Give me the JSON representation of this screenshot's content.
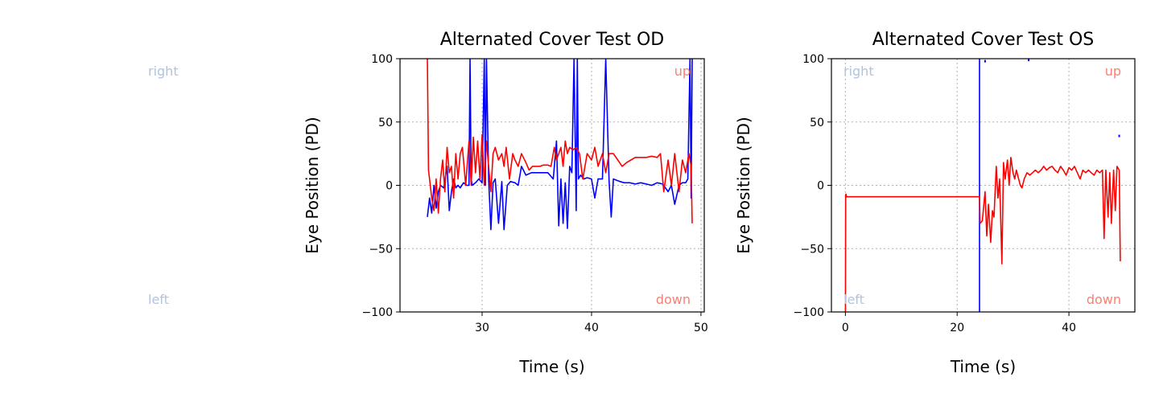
{
  "colors": {
    "right_eye_trace": "#0000ff",
    "left_eye_trace": "#ff0000",
    "right_left_label": "#b0c4de",
    "up_down_label": "#fa8072",
    "grid": "#b0b0b0"
  },
  "floating_labels": {
    "right": "right",
    "left": "left"
  },
  "chart_data": [
    {
      "type": "line",
      "title": "Alternated Cover Test OD",
      "xlabel": "Time (s)",
      "ylabel": "Eye Position (PD)",
      "xlim": [
        22.5,
        50.3
      ],
      "ylim": [
        -100,
        100
      ],
      "xticks": [
        30,
        40,
        50
      ],
      "yticks": [
        -100,
        -50,
        0,
        50,
        100
      ],
      "xtick_labels": [
        "30",
        "40",
        "50"
      ],
      "ytick_labels": [
        "−100",
        "−50",
        "0",
        "50",
        "100"
      ],
      "grid": true,
      "corner_labels": {
        "top_right": "up",
        "bottom_right": "down"
      },
      "series": [
        {
          "color": "#0000ff",
          "x": [
            25.0,
            25.2,
            25.4,
            25.6,
            25.8,
            26.0,
            26.2,
            26.5,
            26.8,
            27.0,
            27.2,
            27.4,
            27.6,
            27.8,
            28.0,
            28.3,
            28.6,
            28.8,
            28.9,
            29.0,
            29.1,
            29.4,
            29.7,
            30.0,
            30.2,
            30.3,
            30.4,
            30.6,
            30.8,
            31.0,
            31.2,
            31.5,
            31.8,
            32.0,
            32.3,
            32.6,
            33.0,
            33.3,
            33.6,
            34.0,
            34.5,
            35.0,
            35.5,
            36.0,
            36.5,
            36.8,
            37.0,
            37.2,
            37.4,
            37.6,
            37.8,
            38.0,
            38.2,
            38.4,
            38.6,
            38.7,
            38.8,
            39.0,
            39.3,
            39.6,
            40.0,
            40.3,
            40.6,
            41.0,
            41.3,
            41.6,
            41.8,
            42.0,
            42.3,
            42.6,
            43.0,
            43.5,
            44.0,
            44.5,
            45.0,
            45.5,
            46.0,
            46.5,
            47.0,
            47.3,
            47.6,
            48.0,
            48.3,
            48.6,
            48.8,
            49.0,
            49.1,
            49.2
          ],
          "y": [
            -25,
            -10,
            -22,
            0,
            -18,
            -5,
            0,
            -2,
            15,
            -20,
            -5,
            5,
            -2,
            0,
            -2,
            2,
            0,
            0,
            100,
            5,
            0,
            2,
            5,
            2,
            100,
            0,
            100,
            5,
            -35,
            2,
            5,
            -30,
            3,
            -35,
            0,
            3,
            2,
            0,
            15,
            8,
            10,
            10,
            10,
            10,
            5,
            35,
            -32,
            5,
            -30,
            2,
            -34,
            15,
            10,
            100,
            -20,
            100,
            5,
            8,
            5,
            6,
            5,
            -10,
            5,
            5,
            100,
            4,
            -25,
            5,
            4,
            3,
            2,
            2,
            1,
            2,
            1,
            0,
            2,
            1,
            -5,
            0,
            -15,
            0,
            2,
            2,
            5,
            100,
            -10,
            100
          ]
        },
        {
          "color": "#ff0000",
          "x": [
            25.0,
            25.1,
            25.2,
            25.4,
            25.6,
            25.8,
            26.0,
            26.2,
            26.4,
            26.6,
            26.8,
            27.0,
            27.2,
            27.4,
            27.6,
            27.8,
            28.0,
            28.2,
            28.5,
            28.8,
            29.0,
            29.2,
            29.4,
            29.6,
            29.8,
            30.0,
            30.2,
            30.4,
            30.6,
            30.8,
            31.0,
            31.2,
            31.5,
            31.8,
            32.0,
            32.2,
            32.5,
            32.8,
            33.0,
            33.3,
            33.6,
            34.0,
            34.3,
            34.6,
            35.0,
            35.3,
            35.6,
            36.0,
            36.3,
            36.6,
            36.8,
            37.0,
            37.2,
            37.4,
            37.6,
            37.8,
            38.0,
            38.3,
            38.6,
            38.9,
            39.2,
            39.6,
            40.0,
            40.3,
            40.6,
            41.0,
            41.3,
            41.6,
            42.0,
            42.4,
            42.8,
            43.2,
            43.6,
            44.0,
            44.5,
            45.0,
            45.5,
            46.0,
            46.3,
            46.6,
            47.0,
            47.3,
            47.6,
            48.0,
            48.3,
            48.6,
            48.9,
            49.1,
            49.2
          ],
          "y": [
            100,
            12,
            5,
            -10,
            -20,
            5,
            -22,
            5,
            20,
            -5,
            30,
            10,
            15,
            -10,
            25,
            5,
            25,
            30,
            0,
            35,
            0,
            38,
            10,
            35,
            5,
            40,
            0,
            35,
            15,
            -5,
            25,
            30,
            20,
            25,
            15,
            30,
            5,
            25,
            20,
            15,
            25,
            18,
            12,
            15,
            15,
            15,
            16,
            16,
            15,
            30,
            20,
            25,
            30,
            15,
            35,
            25,
            30,
            28,
            30,
            25,
            5,
            25,
            20,
            30,
            15,
            25,
            10,
            25,
            25,
            20,
            15,
            18,
            20,
            22,
            22,
            22,
            23,
            22,
            25,
            -5,
            20,
            0,
            25,
            -5,
            20,
            10,
            25,
            15,
            -30
          ]
        }
      ]
    },
    {
      "type": "line",
      "title": "Alternated Cover Test OS",
      "xlabel": "Time (s)",
      "ylabel": "Eye Position (PD)",
      "xlim": [
        -2.5,
        51.8
      ],
      "ylim": [
        -100,
        100
      ],
      "xticks": [
        0,
        20,
        40
      ],
      "yticks": [
        -100,
        -50,
        0,
        50,
        100
      ],
      "xtick_labels": [
        "0",
        "20",
        "40"
      ],
      "ytick_labels": [
        "−100",
        "−50",
        "0",
        "50",
        "100"
      ],
      "grid": true,
      "corner_labels": {
        "top_left": "right",
        "bottom_left": "left",
        "top_right": "up",
        "bottom_right": "down"
      },
      "series": [
        {
          "color": "#0000ff",
          "x": [
            24.0,
            24.0,
            24.01
          ],
          "y": [
            -100,
            100,
            100
          ],
          "dots": [
            [
              25.0,
              98
            ],
            [
              32.8,
              99
            ],
            [
              49.0,
              39
            ]
          ]
        },
        {
          "color": "#ff0000",
          "x": [
            0.0,
            0.05,
            0.1,
            0.2,
            0.3,
            24.0,
            24.1,
            24.5,
            25.0,
            25.3,
            25.6,
            26.0,
            26.3,
            26.6,
            27.0,
            27.3,
            27.6,
            28.0,
            28.3,
            28.6,
            29.0,
            29.3,
            29.6,
            30.0,
            30.3,
            30.6,
            31.0,
            31.3,
            31.6,
            32.0,
            32.5,
            33.0,
            33.5,
            34.0,
            34.5,
            35.0,
            35.5,
            36.0,
            36.5,
            37.0,
            37.5,
            38.0,
            38.5,
            39.0,
            39.5,
            40.0,
            40.5,
            41.0,
            41.5,
            42.0,
            42.5,
            43.0,
            43.5,
            44.0,
            44.5,
            45.0,
            45.5,
            46.0,
            46.3,
            46.6,
            47.0,
            47.3,
            47.6,
            48.0,
            48.3,
            48.6,
            49.0,
            49.2
          ],
          "y": [
            -100,
            -8,
            -7,
            -9,
            -9,
            -9,
            -30,
            -28,
            -5,
            -40,
            -15,
            -45,
            -20,
            -25,
            15,
            -10,
            5,
            -62,
            18,
            5,
            20,
            0,
            22,
            10,
            5,
            12,
            5,
            0,
            -2,
            5,
            10,
            8,
            10,
            12,
            10,
            12,
            15,
            12,
            14,
            15,
            12,
            10,
            15,
            12,
            8,
            14,
            12,
            15,
            10,
            5,
            12,
            10,
            12,
            10,
            8,
            12,
            10,
            12,
            -42,
            12,
            -25,
            10,
            -30,
            12,
            -20,
            15,
            12,
            -60
          ]
        }
      ]
    }
  ]
}
